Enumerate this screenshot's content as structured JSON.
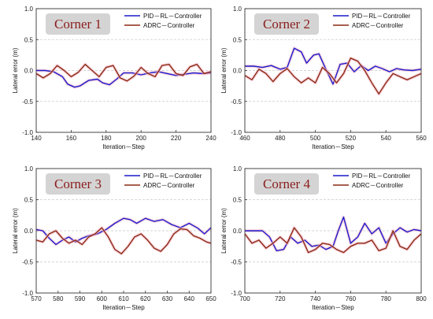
{
  "colors": {
    "pid": "#1a1acc",
    "adrc": "#8b2a14",
    "title_box": "#d4d4d4",
    "title_text": "#8b1c1c",
    "glow": "#f5b6c6"
  },
  "chart_data": [
    {
      "type": "line",
      "title": "Corner 1",
      "xlabel": "Iteration－Step",
      "ylabel": "Lateral error (m)",
      "xlim": [
        140,
        240
      ],
      "ylim": [
        -1.0,
        1.0
      ],
      "xticks": [
        "140",
        "160",
        "180",
        "200",
        "220",
        "240"
      ],
      "yticks": [
        "-1.0",
        "-0.5",
        "0.0",
        "0.5",
        "1.0"
      ],
      "legend": [
        "PID－RL－Controller",
        "ADRC－Controller"
      ],
      "series": [
        {
          "name": "PID－RL－Controller",
          "x": [
            140,
            145,
            150,
            155,
            158,
            162,
            165,
            170,
            175,
            178,
            182,
            186,
            190,
            195,
            200,
            205,
            210,
            215,
            220,
            225,
            230,
            235,
            240
          ],
          "y": [
            0.0,
            0.0,
            -0.02,
            -0.1,
            -0.22,
            -0.27,
            -0.25,
            -0.16,
            -0.14,
            -0.2,
            -0.23,
            -0.14,
            -0.04,
            -0.04,
            -0.07,
            -0.04,
            -0.02,
            -0.05,
            -0.08,
            -0.06,
            -0.04,
            -0.05,
            -0.04
          ]
        },
        {
          "name": "ADRC－Controller",
          "x": [
            140,
            144,
            148,
            152,
            156,
            160,
            164,
            168,
            172,
            176,
            180,
            184,
            188,
            192,
            196,
            200,
            204,
            208,
            212,
            216,
            220,
            224,
            228,
            232,
            236,
            240
          ],
          "y": [
            -0.05,
            -0.12,
            -0.05,
            0.08,
            0.0,
            -0.1,
            -0.03,
            0.1,
            0.0,
            -0.1,
            0.05,
            0.08,
            -0.12,
            -0.17,
            -0.09,
            0.05,
            -0.05,
            -0.1,
            0.08,
            0.1,
            -0.05,
            -0.08,
            0.06,
            0.1,
            -0.05,
            -0.02
          ]
        }
      ]
    },
    {
      "type": "line",
      "title": "Corner 2",
      "xlabel": "Iteration－Step",
      "ylabel": "Lateral error (m)",
      "xlim": [
        460,
        560
      ],
      "ylim": [
        -1.0,
        1.0
      ],
      "xticks": [
        "460",
        "480",
        "500",
        "520",
        "540",
        "560"
      ],
      "yticks": [
        "-1.0",
        "-0.5",
        "0.0",
        "0.5",
        "1.0"
      ],
      "legend": [
        "PID－RL－Controller",
        "ADRC－Controller"
      ],
      "series": [
        {
          "name": "PID－RL－Controller",
          "x": [
            460,
            465,
            470,
            475,
            480,
            484,
            488,
            492,
            495,
            499,
            502,
            506,
            510,
            514,
            518,
            522,
            526,
            530,
            534,
            538,
            542,
            546,
            550,
            555,
            560
          ],
          "y": [
            0.07,
            0.07,
            0.05,
            0.08,
            0.02,
            0.05,
            0.36,
            0.3,
            0.12,
            0.25,
            0.27,
            0.02,
            -0.22,
            0.1,
            0.12,
            -0.02,
            0.08,
            0.0,
            0.07,
            0.03,
            -0.02,
            0.03,
            0.01,
            0.0,
            0.02
          ]
        },
        {
          "name": "ADRC－Controller",
          "x": [
            460,
            464,
            468,
            472,
            476,
            480,
            484,
            488,
            492,
            496,
            500,
            504,
            508,
            512,
            516,
            520,
            524,
            528,
            532,
            536,
            540,
            544,
            548,
            552,
            556,
            560
          ],
          "y": [
            -0.08,
            -0.15,
            0.02,
            -0.05,
            -0.18,
            -0.05,
            0.03,
            -0.1,
            -0.2,
            -0.12,
            -0.2,
            0.05,
            -0.05,
            -0.2,
            -0.05,
            0.2,
            0.15,
            0.0,
            -0.2,
            -0.38,
            -0.2,
            -0.05,
            -0.1,
            -0.15,
            -0.1,
            -0.05
          ]
        }
      ]
    },
    {
      "type": "line",
      "title": "Corner 3",
      "xlabel": "Iteration－Step",
      "ylabel": "Lateral error (m)",
      "xlim": [
        570,
        650
      ],
      "ylim": [
        -1.0,
        1.0
      ],
      "xticks": [
        "570",
        "580",
        "590",
        "600",
        "610",
        "620",
        "630",
        "640",
        "650"
      ],
      "yticks": [
        "-1.0",
        "-0.5",
        "0.0",
        "0.5",
        "1.0"
      ],
      "legend": [
        "PID－RL－Controller",
        "ADRC－Controller"
      ],
      "series": [
        {
          "name": "PID－RL－Controller",
          "x": [
            570,
            573,
            576,
            579,
            582,
            585,
            588,
            591,
            594,
            598,
            602,
            606,
            610,
            613,
            616,
            620,
            624,
            628,
            632,
            636,
            640,
            644,
            647,
            650
          ],
          "y": [
            0.02,
            0.0,
            -0.12,
            -0.22,
            -0.15,
            -0.1,
            -0.18,
            -0.12,
            -0.08,
            -0.05,
            0.02,
            0.12,
            0.2,
            0.18,
            0.12,
            0.2,
            0.15,
            0.18,
            0.1,
            0.05,
            0.12,
            0.04,
            -0.05,
            0.05
          ]
        },
        {
          "name": "ADRC－Controller",
          "x": [
            570,
            573,
            576,
            579,
            582,
            585,
            588,
            591,
            594,
            597,
            600,
            603,
            606,
            609,
            612,
            615,
            618,
            621,
            624,
            627,
            630,
            633,
            636,
            639,
            642,
            645,
            648,
            650
          ],
          "y": [
            -0.15,
            -0.18,
            -0.05,
            0.0,
            -0.12,
            -0.2,
            -0.15,
            -0.22,
            -0.1,
            -0.05,
            0.05,
            -0.1,
            -0.3,
            -0.37,
            -0.25,
            -0.1,
            -0.05,
            -0.15,
            -0.28,
            -0.33,
            -0.22,
            -0.05,
            0.03,
            0.02,
            -0.08,
            -0.12,
            -0.18,
            -0.2
          ]
        }
      ]
    },
    {
      "type": "line",
      "title": "Corner 4",
      "xlabel": "Iteration－Step",
      "ylabel": "Lateral error (m)",
      "xlim": [
        700,
        800
      ],
      "ylim": [
        -1.0,
        1.0
      ],
      "xticks": [
        "700",
        "720",
        "740",
        "760",
        "780",
        "800"
      ],
      "yticks": [
        "-1.0",
        "-0.5",
        "0.0",
        "0.5",
        "1.0"
      ],
      "legend": [
        "PID－RL－Controller",
        "ADRC－Controller"
      ],
      "series": [
        {
          "name": "PID－RL－Controller",
          "x": [
            700,
            705,
            710,
            714,
            718,
            722,
            726,
            730,
            734,
            738,
            742,
            746,
            750,
            753,
            756,
            760,
            764,
            768,
            772,
            776,
            780,
            784,
            788,
            792,
            796,
            800
          ],
          "y": [
            0.0,
            0.0,
            0.0,
            -0.1,
            -0.32,
            -0.3,
            -0.1,
            -0.2,
            -0.15,
            -0.25,
            -0.23,
            -0.3,
            -0.25,
            0.0,
            0.22,
            -0.2,
            -0.1,
            0.12,
            -0.05,
            0.05,
            -0.2,
            -0.05,
            0.05,
            -0.02,
            0.02,
            0.0
          ]
        },
        {
          "name": "ADRC－Controller",
          "x": [
            700,
            704,
            708,
            712,
            716,
            720,
            724,
            728,
            732,
            736,
            740,
            744,
            748,
            752,
            756,
            760,
            764,
            768,
            772,
            776,
            780,
            784,
            788,
            792,
            796,
            800
          ],
          "y": [
            -0.05,
            -0.2,
            -0.15,
            -0.28,
            -0.2,
            -0.1,
            -0.2,
            0.05,
            -0.1,
            -0.35,
            -0.3,
            -0.2,
            -0.22,
            -0.3,
            -0.35,
            -0.25,
            -0.2,
            -0.2,
            -0.15,
            -0.32,
            -0.28,
            0.0,
            -0.25,
            -0.3,
            -0.15,
            -0.05
          ]
        }
      ]
    }
  ]
}
